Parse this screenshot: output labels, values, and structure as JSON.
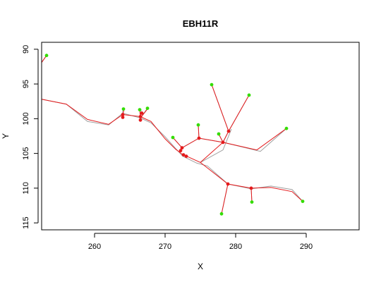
{
  "chart_data": {
    "type": "line",
    "title": "EBH11R",
    "xlabel": "X",
    "ylabel": "Y",
    "xlim": [
      252.5,
      297.5
    ],
    "ylim": [
      116,
      89
    ],
    "y_reversed": true,
    "xticks": [
      260,
      270,
      280,
      290
    ],
    "yticks": [
      90,
      95,
      100,
      105,
      110,
      115
    ],
    "grid": false,
    "legend": "none",
    "colors": {
      "fit_line": "#e41a1c",
      "raw_line": "#a0a0a0",
      "node": "#e41a1c",
      "tip": "#33dd00"
    },
    "series": [
      {
        "raw": [
          [
            252.5,
            91.9
          ],
          [
            253.2,
            90.9
          ]
        ],
        "fit": [
          [
            252.5,
            91.9
          ],
          [
            253.2,
            90.9
          ]
        ]
      },
      {
        "raw": [
          [
            252.5,
            97.2
          ],
          [
            256,
            97.9
          ],
          [
            259,
            100.4
          ],
          [
            262,
            100.9
          ],
          [
            264,
            99.2
          ],
          [
            266.5,
            99.9
          ],
          [
            268,
            100.6
          ],
          [
            270,
            102.6
          ],
          [
            271.5,
            104.3
          ],
          [
            272.5,
            105.4
          ],
          [
            274.5,
            106.4
          ],
          [
            276,
            106.8
          ],
          [
            278.9,
            109.4
          ],
          [
            282.2,
            110.1
          ],
          [
            285,
            109.7
          ],
          [
            288,
            110.2
          ],
          [
            289.5,
            111.9
          ]
        ],
        "fit": [
          [
            252.5,
            97.2
          ],
          [
            256,
            97.9
          ],
          [
            259,
            100.1
          ],
          [
            262,
            100.8
          ],
          [
            264,
            99.4
          ],
          [
            266.5,
            99.7
          ],
          [
            268,
            100.4
          ],
          [
            270,
            102.9
          ],
          [
            271.5,
            104.4
          ],
          [
            272.4,
            105.1
          ],
          [
            275,
            106.3
          ],
          [
            278.9,
            109.4
          ],
          [
            282.2,
            110.0
          ],
          [
            285,
            109.9
          ],
          [
            288,
            110.5
          ],
          [
            289.5,
            111.9
          ]
        ]
      },
      {
        "raw": [
          [
            264,
            99.4
          ],
          [
            264,
            98.6
          ]
        ],
        "fit": [
          [
            264,
            99.4
          ],
          [
            264.2,
            98.6
          ]
        ]
      },
      {
        "raw": [
          [
            266.5,
            99.9
          ],
          [
            266.6,
            98.7
          ]
        ],
        "fit": [
          [
            266.5,
            99.9
          ],
          [
            266.4,
            98.7
          ]
        ]
      },
      {
        "raw": [
          [
            266.5,
            99.9
          ],
          [
            267.5,
            98.5
          ]
        ],
        "fit": [
          [
            266.5,
            99.9
          ],
          [
            267.5,
            98.6
          ]
        ]
      },
      {
        "raw": [
          [
            272.4,
            104.2
          ],
          [
            271.1,
            102.7
          ]
        ],
        "fit": [
          [
            272.4,
            104.2
          ],
          [
            271.1,
            102.7
          ]
        ]
      },
      {
        "raw": [
          [
            272.4,
            104.2
          ],
          [
            274.8,
            102.8
          ],
          [
            278.2,
            103.4
          ],
          [
            283.5,
            104.7
          ],
          [
            287.2,
            101.4
          ]
        ],
        "fit": [
          [
            272.4,
            104.2
          ],
          [
            274.8,
            102.8
          ],
          [
            278.2,
            103.4
          ],
          [
            283,
            104.5
          ],
          [
            287.2,
            101.4
          ]
        ]
      },
      {
        "raw": [
          [
            274.8,
            102.8
          ],
          [
            274.7,
            100.9
          ]
        ],
        "fit": [
          [
            274.8,
            102.8
          ],
          [
            274.7,
            100.9
          ]
        ]
      },
      {
        "raw": [
          [
            278.2,
            103.4
          ],
          [
            277.6,
            102.2
          ]
        ],
        "fit": [
          [
            278.2,
            103.4
          ],
          [
            277.6,
            102.2
          ]
        ]
      },
      {
        "raw": [
          [
            278.2,
            103.4
          ],
          [
            279,
            101.8
          ],
          [
            276.6,
            95.1
          ]
        ],
        "fit": [
          [
            278.2,
            103.4
          ],
          [
            279,
            101.8
          ],
          [
            276.6,
            95.1
          ]
        ]
      },
      {
        "raw": [
          [
            279,
            101.8
          ],
          [
            281.9,
            96.6
          ]
        ],
        "fit": [
          [
            279,
            101.8
          ],
          [
            281.9,
            96.6
          ]
        ]
      },
      {
        "raw": [
          [
            275,
            106.3
          ],
          [
            278.2,
            104.5
          ],
          [
            279.4,
            101.5
          ]
        ],
        "fit": [
          [
            275,
            106.3
          ],
          [
            278.2,
            103.4
          ]
        ]
      },
      {
        "raw": [
          [
            278.9,
            109.4
          ],
          [
            278,
            113.7
          ]
        ],
        "fit": [
          [
            278.9,
            109.4
          ],
          [
            278,
            113.7
          ]
        ]
      },
      {
        "raw": [
          [
            282.2,
            110.1
          ],
          [
            282.3,
            112
          ]
        ],
        "fit": [
          [
            282.2,
            110.0
          ],
          [
            282.3,
            112
          ]
        ]
      }
    ],
    "nodes": [
      [
        264,
        99.4
      ],
      [
        264,
        99.8
      ],
      [
        266.5,
        99.7
      ],
      [
        266.5,
        100.2
      ],
      [
        266.7,
        99.2
      ],
      [
        272.4,
        104.2
      ],
      [
        272.2,
        104.6
      ],
      [
        272.6,
        105.2
      ],
      [
        273,
        105.4
      ],
      [
        274.8,
        102.8
      ],
      [
        278.2,
        103.4
      ],
      [
        279,
        101.8
      ],
      [
        278.9,
        109.4
      ],
      [
        282.2,
        110.0
      ]
    ],
    "tips": [
      [
        253.2,
        90.9
      ],
      [
        264.1,
        98.6
      ],
      [
        266.4,
        98.7
      ],
      [
        267.5,
        98.5
      ],
      [
        271.1,
        102.7
      ],
      [
        274.7,
        100.9
      ],
      [
        276.6,
        95.1
      ],
      [
        277.6,
        102.2
      ],
      [
        281.9,
        96.6
      ],
      [
        287.2,
        101.4
      ],
      [
        289.5,
        111.9
      ],
      [
        278,
        113.7
      ],
      [
        282.3,
        112
      ]
    ]
  }
}
